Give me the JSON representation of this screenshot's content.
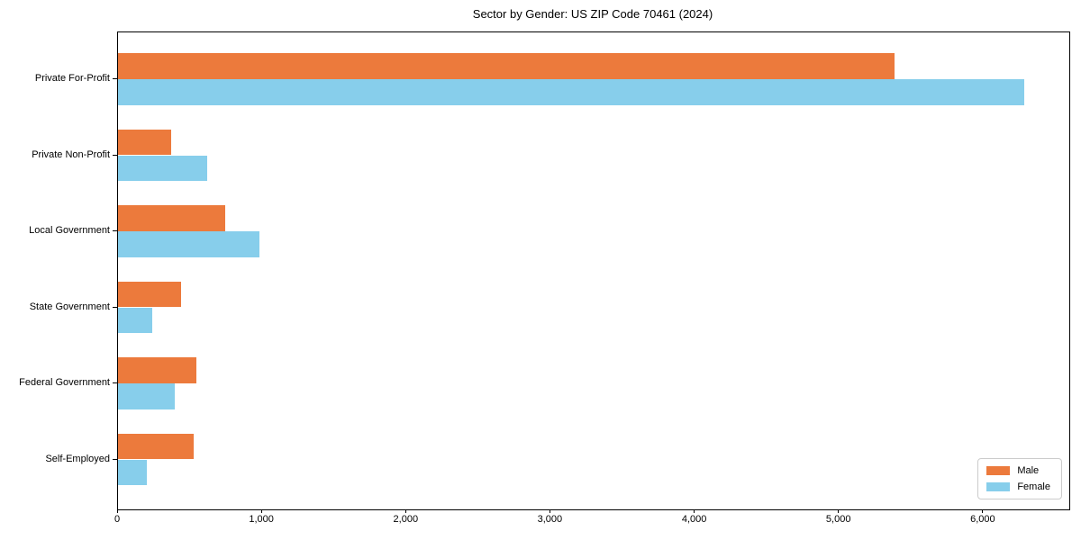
{
  "chart_data": {
    "type": "bar",
    "orientation": "horizontal",
    "title": "Sector by Gender: US ZIP Code 70461 (2024)",
    "categories": [
      "Private For-Profit",
      "Private Non-Profit",
      "Local Government",
      "State Government",
      "Federal Government",
      "Self-Employed"
    ],
    "series": [
      {
        "name": "Male",
        "color": "#EC7A3C",
        "values": [
          5380,
          365,
          745,
          435,
          540,
          525
        ]
      },
      {
        "name": "Female",
        "color": "#87CEEB",
        "values": [
          6280,
          620,
          980,
          240,
          390,
          200
        ]
      }
    ],
    "xlabel": "",
    "ylabel": "",
    "xlim": [
      0,
      6594
    ],
    "xticks": [
      0,
      1000,
      2000,
      3000,
      4000,
      5000,
      6000
    ],
    "xtick_labels": [
      "0",
      "1,000",
      "2,000",
      "3,000",
      "4,000",
      "5,000",
      "6,000"
    ],
    "grid": false,
    "legend": {
      "position": "lower-right",
      "entries": [
        "Male",
        "Female"
      ]
    }
  },
  "colors": {
    "male": "#EC7A3C",
    "female": "#87CEEB",
    "axis": "#000000",
    "legend_border": "#cccccc",
    "background": "#ffffff"
  }
}
